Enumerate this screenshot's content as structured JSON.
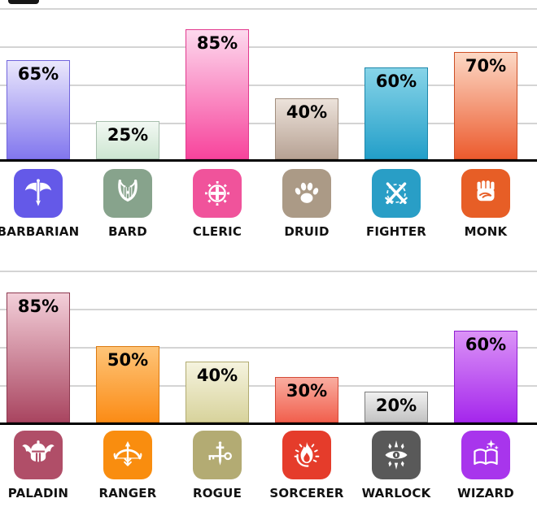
{
  "chart_data": [
    {
      "type": "bar",
      "title": "",
      "categories": [
        "BARBARIAN",
        "BARD",
        "CLERIC",
        "DRUID",
        "FIGHTER",
        "MONK"
      ],
      "values": [
        65,
        25,
        85,
        40,
        60,
        70
      ],
      "value_labels": [
        "65%",
        "25%",
        "85%",
        "40%",
        "60%",
        "70%"
      ],
      "xlabel": "",
      "ylabel": "",
      "ylim": [
        0,
        100
      ],
      "grid": true,
      "gridline_step": 25,
      "legend": "none"
    },
    {
      "type": "bar",
      "title": "",
      "categories": [
        "PALADIN",
        "RANGER",
        "ROGUE",
        "SORCERER",
        "WARLOCK",
        "WIZARD"
      ],
      "values": [
        85,
        50,
        40,
        30,
        20,
        60
      ],
      "value_labels": [
        "85%",
        "50%",
        "40%",
        "30%",
        "20%",
        "60%"
      ],
      "xlabel": "",
      "ylabel": "",
      "ylim": [
        0,
        100
      ],
      "grid": true,
      "gridline_step": 25,
      "legend": "none"
    }
  ],
  "style": {
    "background": "#ffffff",
    "axis_color": "#000000",
    "gridline_color": "#d4d4d4",
    "value_label_color": "#000000",
    "class_label_color": "#111111"
  },
  "rows": [
    {
      "items": [
        {
          "label": "BARBARIAN",
          "value_label": "65%",
          "pct": 65,
          "icon": "battle-axe-icon",
          "bar_top": "#eae7fc",
          "bar_bottom": "#8277ee",
          "bar_border": "#7165dd",
          "icon_bg": "#6459e8"
        },
        {
          "label": "BARD",
          "value_label": "25%",
          "pct": 25,
          "icon": "lyre-icon",
          "bar_top": "#f2f8f3",
          "bar_bottom": "#cde6d1",
          "bar_border": "#a8bfae",
          "icon_bg": "#87a38c"
        },
        {
          "label": "CLERIC",
          "value_label": "85%",
          "pct": 85,
          "icon": "cross-sunburst-icon",
          "bar_top": "#fdd9ee",
          "bar_bottom": "#f7449c",
          "bar_border": "#e23a8e",
          "icon_bg": "#f0539b"
        },
        {
          "label": "DRUID",
          "value_label": "40%",
          "pct": 40,
          "icon": "paw-icon",
          "bar_top": "#ece2da",
          "bar_bottom": "#b7a294",
          "bar_border": "#a18e7e",
          "icon_bg": "#ab9a86"
        },
        {
          "label": "FIGHTER",
          "value_label": "60%",
          "pct": 60,
          "icon": "crossed-swords-icon",
          "bar_top": "#87d4e8",
          "bar_bottom": "#239fc9",
          "bar_border": "#1d87ab",
          "icon_bg": "#299ec6"
        },
        {
          "label": "MONK",
          "value_label": "70%",
          "pct": 70,
          "icon": "fist-icon",
          "bar_top": "#fcd8c5",
          "bar_bottom": "#ec5b2e",
          "bar_border": "#cc4f26",
          "icon_bg": "#e75e26"
        }
      ]
    },
    {
      "items": [
        {
          "label": "PALADIN",
          "value_label": "85%",
          "pct": 85,
          "icon": "winged-helmet-icon",
          "bar_top": "#f3cfd9",
          "bar_bottom": "#a94560",
          "bar_border": "#8e3a51",
          "icon_bg": "#b04e68"
        },
        {
          "label": "RANGER",
          "value_label": "50%",
          "pct": 50,
          "icon": "bow-arrow-icon",
          "bar_top": "#fec478",
          "bar_bottom": "#fb8c16",
          "bar_border": "#db790f",
          "icon_bg": "#f98d0f"
        },
        {
          "label": "ROGUE",
          "value_label": "40%",
          "pct": 40,
          "icon": "dagger-key-icon",
          "bar_top": "#f5f3de",
          "bar_bottom": "#d8d39c",
          "bar_border": "#b1ab70",
          "icon_bg": "#b3ab73"
        },
        {
          "label": "SORCERER",
          "value_label": "30%",
          "pct": 30,
          "icon": "flame-icon",
          "bar_top": "#f9ada0",
          "bar_bottom": "#f1604e",
          "bar_border": "#d44a38",
          "icon_bg": "#e53c2b"
        },
        {
          "label": "WARLOCK",
          "value_label": "20%",
          "pct": 20,
          "icon": "eye-icon",
          "bar_top": "#f0f0f0",
          "bar_bottom": "#c3c3c3",
          "bar_border": "#7d7d7d",
          "icon_bg": "#595959"
        },
        {
          "label": "WIZARD",
          "value_label": "60%",
          "pct": 60,
          "icon": "spellbook-icon",
          "bar_top": "#db93f7",
          "bar_bottom": "#a527ec",
          "bar_border": "#8d1fd0",
          "icon_bg": "#a835ec"
        }
      ]
    }
  ]
}
